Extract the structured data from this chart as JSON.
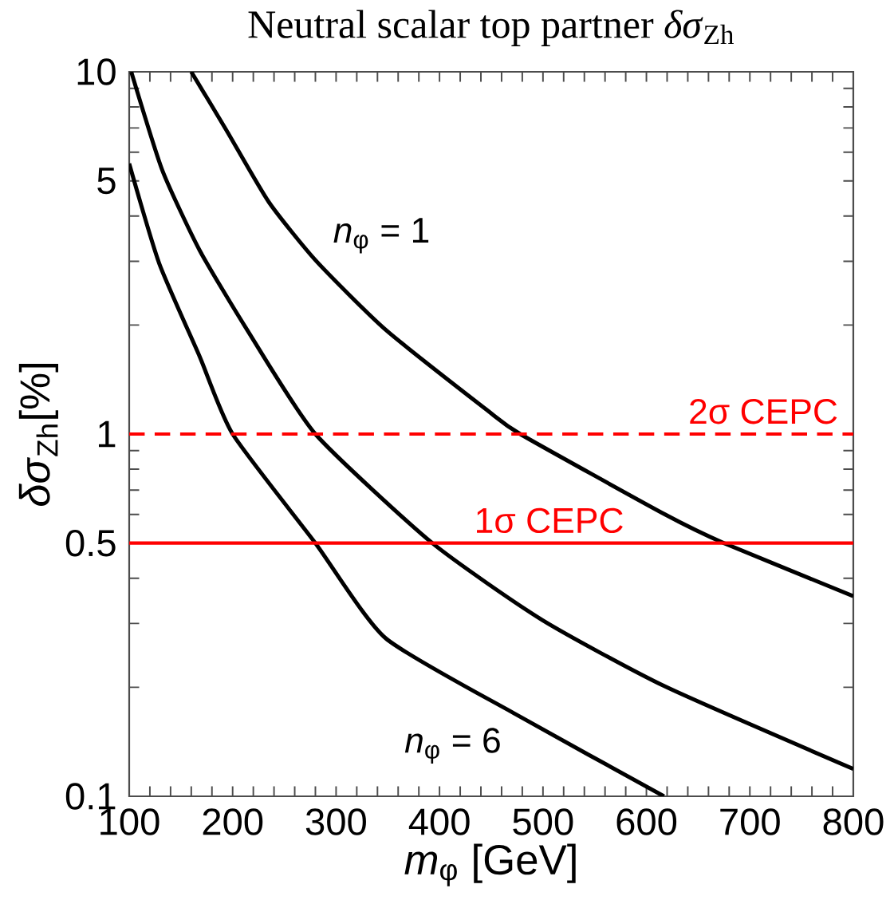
{
  "chart_data": {
    "type": "line",
    "title": "Neutral scalar top partner *δσ*$_{Zh}$",
    "xlabel": "*m*$_{φ}$ [GeV]",
    "ylabel": "*δσ*$_{Zh}$[%]",
    "log": "y",
    "xlim": [
      100,
      800
    ],
    "ylim": [
      0.1,
      10
    ],
    "xticks": [
      100,
      {
        "value": 120,
        "label": null
      },
      {
        "value": 140,
        "label": null
      },
      {
        "value": 160,
        "label": null
      },
      {
        "value": 180,
        "label": null
      },
      200,
      {
        "value": 220,
        "label": null
      },
      {
        "value": 240,
        "label": null
      },
      {
        "value": 260,
        "label": null
      },
      {
        "value": 280,
        "label": null
      },
      300,
      {
        "value": 320,
        "label": null
      },
      {
        "value": 340,
        "label": null
      },
      {
        "value": 360,
        "label": null
      },
      {
        "value": 380,
        "label": null
      },
      400,
      {
        "value": 420,
        "label": null
      },
      {
        "value": 440,
        "label": null
      },
      {
        "value": 460,
        "label": null
      },
      {
        "value": 480,
        "label": null
      },
      500,
      {
        "value": 520,
        "label": null
      },
      {
        "value": 540,
        "label": null
      },
      {
        "value": 560,
        "label": null
      },
      {
        "value": 580,
        "label": null
      },
      600,
      {
        "value": 620,
        "label": null
      },
      {
        "value": 640,
        "label": null
      },
      {
        "value": 660,
        "label": null
      },
      {
        "value": 680,
        "label": null
      },
      700,
      {
        "value": 720,
        "label": null
      },
      {
        "value": 740,
        "label": null
      },
      {
        "value": 760,
        "label": null
      },
      {
        "value": 780,
        "label": null
      },
      800
    ],
    "yticks": [
      0.1,
      {
        "value": 0.2,
        "label": null
      },
      {
        "value": 0.3,
        "label": null
      },
      {
        "value": 0.4,
        "label": null
      },
      0.5,
      {
        "value": 0.6,
        "label": null
      },
      {
        "value": 0.7,
        "label": null
      },
      {
        "value": 0.8,
        "label": null
      },
      {
        "value": 0.9,
        "label": null
      },
      1,
      {
        "value": 2,
        "label": null
      },
      {
        "value": 3,
        "label": null
      },
      {
        "value": 4,
        "label": null
      },
      5,
      {
        "value": 6,
        "label": null
      },
      {
        "value": 7,
        "label": null
      },
      {
        "value": 8,
        "label": null
      },
      {
        "value": 9,
        "label": null
      },
      10
    ],
    "series": [
      {
        "name": "*n*$_{φ}$ = 1",
        "color": "#000000",
        "x": [
          160,
          194,
          235,
          281,
          348,
          445,
          478,
          618,
          675,
          800
        ],
        "values": [
          10,
          6.9,
          4.37,
          3.0,
          1.94,
          1.17,
          1.0,
          0.6,
          0.5,
          0.357
        ]
      },
      {
        "color": "#000000",
        "x": [
          102,
          132,
          168,
          214,
          280,
          393,
          499,
          618,
          800
        ],
        "values": [
          10,
          5.35,
          3.22,
          1.94,
          1.0,
          0.5,
          0.307,
          0.201,
          0.119
        ]
      },
      {
        "name": "*n*$_{φ}$ = 6",
        "color": "#000000",
        "x": [
          100,
          129,
          168,
          200,
          280,
          348,
          476,
          617
        ],
        "values": [
          5.58,
          2.96,
          1.64,
          1.0,
          0.5,
          0.273,
          0.167,
          0.1
        ]
      }
    ],
    "ref_lines": [
      {
        "axis": "y",
        "value": 1,
        "label": "2σ CEPC",
        "color": "#ff0000",
        "line_style": "dashed"
      },
      {
        "axis": "y",
        "value": 0.5,
        "label": "1σ CEPC",
        "color": "#ff0000",
        "line_style": "solid"
      }
    ],
    "line_style": "solid",
    "marker": "none"
  }
}
